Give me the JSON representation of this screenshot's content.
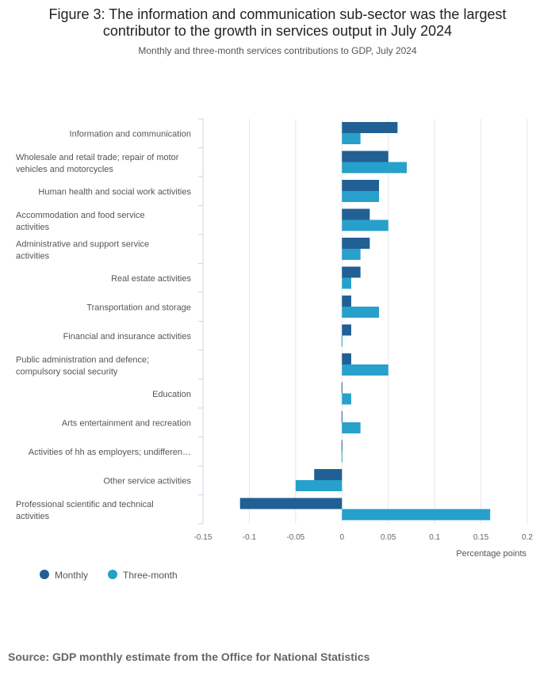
{
  "title_line1": "Figure 3: The information and communication sub-sector was the largest",
  "title_line2": "contributor to the growth in services output in July 2024",
  "subtitle": "Monthly and three-month services contributions to GDP, July 2024",
  "source": "Source: GDP monthly estimate from the Office for National Statistics",
  "colors": {
    "monthly": "#206095",
    "three_month": "#27A0CC",
    "grid": "#e6e6e6",
    "axis": "#c8d6e5"
  },
  "chart_data": {
    "type": "bar",
    "orientation": "horizontal",
    "xlabel": "Percentage points",
    "xlim": [
      -0.15,
      0.2
    ],
    "xticks": [
      -0.15,
      -0.1,
      -0.05,
      0,
      0.05,
      0.1,
      0.15,
      0.2
    ],
    "xtick_labels": [
      "-0.15",
      "-0.1",
      "-0.05",
      "0",
      "0.05",
      "0.1",
      "0.15",
      "0.2"
    ],
    "legend_position": "bottom-left",
    "categories": [
      [
        "Information and communication"
      ],
      [
        "Wholesale and retail trade; repair of motor",
        "vehicles and motorcycles"
      ],
      [
        "Human health and social work activities"
      ],
      [
        "Accommodation and food service",
        "activities"
      ],
      [
        "Administrative and support service",
        "activities"
      ],
      [
        "Real estate activities"
      ],
      [
        "Transportation and storage"
      ],
      [
        "Financial and insurance activities"
      ],
      [
        "Public administration and defence;",
        "compulsory social security"
      ],
      [
        "Education"
      ],
      [
        "Arts entertainment and recreation"
      ],
      [
        "Activities of hh as employers; undifferen…"
      ],
      [
        "Other service activities"
      ],
      [
        "Professional scientific and technical",
        "activities"
      ]
    ],
    "series": [
      {
        "name": "Monthly",
        "values": [
          0.06,
          0.05,
          0.04,
          0.03,
          0.03,
          0.02,
          0.01,
          0.01,
          0.01,
          0.0,
          0.0,
          0.0,
          -0.03,
          -0.11
        ]
      },
      {
        "name": "Three-month",
        "values": [
          0.02,
          0.07,
          0.04,
          0.05,
          0.02,
          0.01,
          0.04,
          0.0,
          0.05,
          0.01,
          0.02,
          0.0,
          -0.05,
          0.16
        ]
      }
    ]
  }
}
